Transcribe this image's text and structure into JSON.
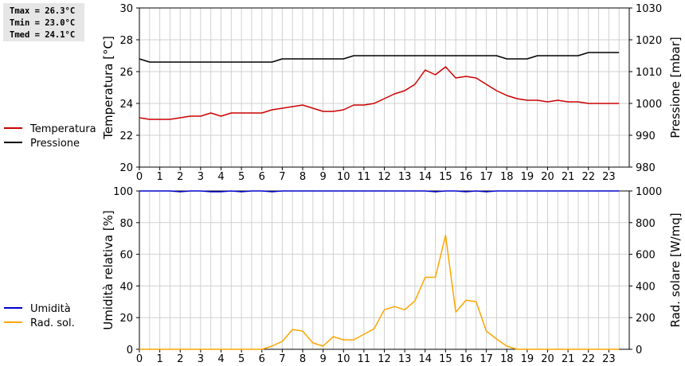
{
  "stats": {
    "tmax": "Tmax = 26.3°C",
    "tmin": "Tmin = 23.0°C",
    "tmed": "Tmed = 24.1°C"
  },
  "colors": {
    "temperature": "#cc0000",
    "pressure": "#000000",
    "humidity": "#0000cc",
    "radiation": "#ffa500",
    "grid": "#d0d0d0"
  },
  "chart_data": [
    {
      "type": "line",
      "x_ticks": [
        "0",
        "1",
        "2",
        "3",
        "4",
        "5",
        "6",
        "7",
        "8",
        "9",
        "10",
        "11",
        "12",
        "13",
        "14",
        "15",
        "16",
        "17",
        "18",
        "19",
        "20",
        "21",
        "22",
        "23"
      ],
      "xlim": [
        0,
        24
      ],
      "ylabel": "Temperatura [°C]",
      "ylim": [
        20,
        30
      ],
      "y_ticks": [
        "20",
        "22",
        "24",
        "26",
        "28",
        "30"
      ],
      "y2label": "Pressione [mbar]",
      "y2lim": [
        980,
        1030
      ],
      "y2_ticks": [
        "980",
        "990",
        "1000",
        "1010",
        "1020",
        "1030"
      ],
      "grid": true,
      "legend_position": "left",
      "series": [
        {
          "name": "Temperatura",
          "axis": "left",
          "x": [
            0,
            0.5,
            1,
            1.5,
            2,
            2.5,
            3,
            3.5,
            4,
            4.5,
            5,
            5.5,
            6,
            6.5,
            7,
            7.5,
            8,
            8.5,
            9,
            9.5,
            10,
            10.5,
            11,
            11.5,
            12,
            12.5,
            13,
            13.5,
            14,
            14.5,
            15,
            15.5,
            16,
            16.5,
            17,
            17.5,
            18,
            18.5,
            19,
            19.5,
            20,
            20.5,
            21,
            21.5,
            22,
            22.5,
            23,
            23.5
          ],
          "y": [
            23.1,
            23.0,
            23.0,
            23.0,
            23.1,
            23.2,
            23.2,
            23.4,
            23.2,
            23.4,
            23.4,
            23.4,
            23.4,
            23.6,
            23.7,
            23.8,
            23.9,
            23.7,
            23.5,
            23.5,
            23.6,
            23.9,
            23.9,
            24.0,
            24.3,
            24.6,
            24.8,
            25.2,
            26.1,
            25.8,
            26.3,
            25.6,
            25.7,
            25.6,
            25.2,
            24.8,
            24.5,
            24.3,
            24.2,
            24.2,
            24.1,
            24.2,
            24.1,
            24.1,
            24.0,
            24.0,
            24.0,
            24.0
          ]
        },
        {
          "name": "Pressione",
          "axis": "right",
          "x": [
            0,
            0.5,
            1,
            1.5,
            2,
            2.5,
            3,
            3.5,
            4,
            4.5,
            5,
            5.5,
            6,
            6.5,
            7,
            7.5,
            8,
            8.5,
            9,
            9.5,
            10,
            10.5,
            11,
            11.5,
            12,
            12.5,
            13,
            13.5,
            14,
            14.5,
            15,
            15.5,
            16,
            16.5,
            17,
            17.5,
            18,
            18.5,
            19,
            19.5,
            20,
            20.5,
            21,
            21.5,
            22,
            22.5,
            23,
            23.5
          ],
          "y": [
            1014,
            1013,
            1013,
            1013,
            1013,
            1013,
            1013,
            1013,
            1013,
            1013,
            1013,
            1013,
            1013,
            1013,
            1014,
            1014,
            1014,
            1014,
            1014,
            1014,
            1014,
            1015,
            1015,
            1015,
            1015,
            1015,
            1015,
            1015,
            1015,
            1015,
            1015,
            1015,
            1015,
            1015,
            1015,
            1015,
            1014,
            1014,
            1014,
            1015,
            1015,
            1015,
            1015,
            1015,
            1016,
            1016,
            1016,
            1016
          ]
        }
      ]
    },
    {
      "type": "line",
      "x_ticks": [
        "0",
        "1",
        "2",
        "3",
        "4",
        "5",
        "6",
        "7",
        "8",
        "9",
        "10",
        "11",
        "12",
        "13",
        "14",
        "15",
        "16",
        "17",
        "18",
        "19",
        "20",
        "21",
        "22",
        "23"
      ],
      "xlim": [
        0,
        24
      ],
      "ylabel": "Umidità relativa [%]",
      "ylim": [
        0,
        100
      ],
      "y_ticks": [
        "0",
        "20",
        "40",
        "60",
        "80",
        "100"
      ],
      "y2label": "Rad. solare [W/mq]",
      "y2lim": [
        0,
        1000
      ],
      "y2_ticks": [
        "0",
        "200",
        "400",
        "600",
        "800",
        "1000"
      ],
      "grid": true,
      "legend_position": "left",
      "series": [
        {
          "name": "Umidità",
          "axis": "left",
          "x": [
            0,
            0.5,
            1,
            1.5,
            2,
            2.5,
            3,
            3.5,
            4,
            4.5,
            5,
            5.5,
            6,
            6.5,
            7,
            7.5,
            8,
            8.5,
            9,
            9.5,
            10,
            10.5,
            11,
            11.5,
            12,
            12.5,
            13,
            13.5,
            14,
            14.5,
            15,
            15.5,
            16,
            16.5,
            17,
            17.5,
            18,
            18.5,
            19,
            19.5,
            20,
            20.5,
            21,
            21.5,
            22,
            22.5,
            23,
            23.5
          ],
          "y": [
            100,
            100,
            100,
            100,
            99.5,
            100,
            100,
            99.5,
            99.5,
            100,
            99.5,
            100,
            100,
            99.5,
            100,
            100,
            100,
            100,
            100,
            100,
            100,
            100,
            100,
            100,
            100,
            100,
            100,
            100,
            100,
            99.5,
            100,
            100,
            99.5,
            100,
            99.5,
            100,
            100,
            100,
            100,
            100,
            100,
            100,
            100,
            100,
            100,
            100,
            100,
            100
          ]
        },
        {
          "name": "Rad. sol.",
          "axis": "right",
          "x": [
            0,
            0.5,
            1,
            1.5,
            2,
            2.5,
            3,
            3.5,
            4,
            4.5,
            5,
            5.5,
            6,
            6.5,
            7,
            7.5,
            8,
            8.5,
            9,
            9.5,
            10,
            10.5,
            11,
            11.5,
            12,
            12.5,
            13,
            13.5,
            14,
            14.5,
            15,
            15.5,
            16,
            16.5,
            17,
            17.5,
            18,
            18.5,
            19,
            19.5,
            20,
            20.5,
            21,
            21.5,
            22,
            22.5,
            23,
            23.5
          ],
          "y": [
            0,
            0,
            0,
            0,
            0,
            0,
            0,
            0,
            0,
            0,
            0,
            0,
            0,
            20,
            50,
            125,
            115,
            40,
            20,
            80,
            60,
            60,
            95,
            130,
            250,
            270,
            250,
            305,
            455,
            455,
            720,
            235,
            310,
            300,
            115,
            65,
            20,
            0,
            0,
            0,
            0,
            0,
            0,
            0,
            0,
            0,
            0,
            0
          ]
        }
      ]
    }
  ]
}
